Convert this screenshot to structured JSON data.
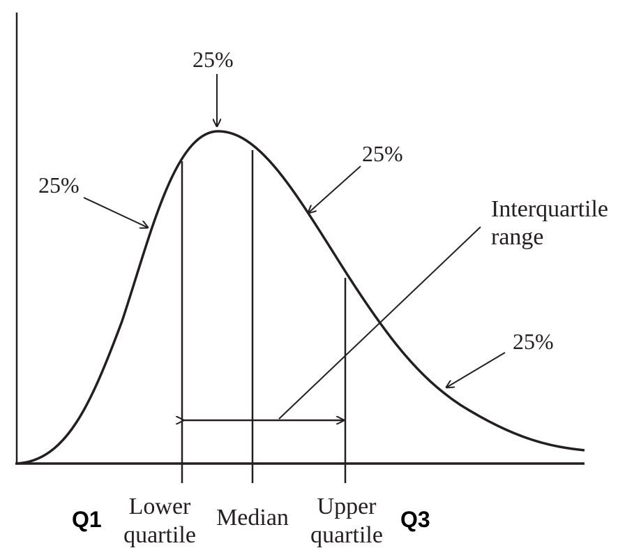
{
  "labels": {
    "pct_peak": "25%",
    "pct_left": "25%",
    "pct_right_upper": "25%",
    "pct_right_tail": "25%",
    "iqr_line1": "Interquartile",
    "iqr_line2": "range",
    "lower_line1": "Lower",
    "lower_line2": "quartile",
    "median": "Median",
    "upper_line1": "Upper",
    "upper_line2": "quartile",
    "q1": "Q1",
    "q3": "Q3"
  },
  "colors": {
    "ink": "#231f20",
    "bold_text": "#000000",
    "background": "#ffffff"
  }
}
